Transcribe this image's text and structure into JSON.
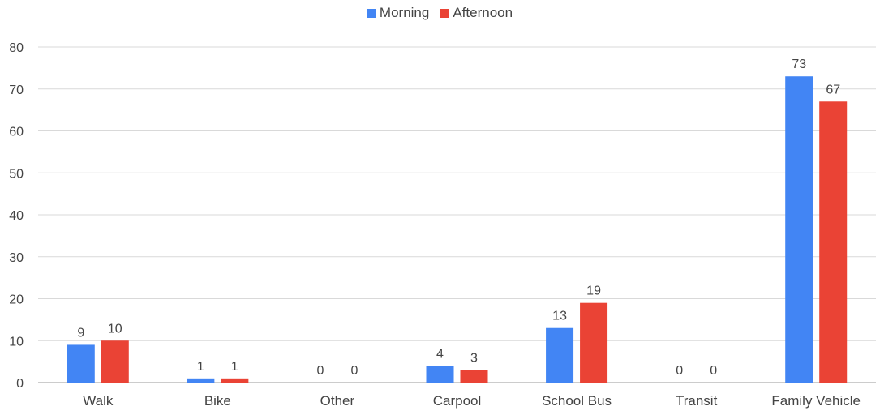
{
  "chart_data": {
    "type": "bar",
    "categories": [
      "Walk",
      "Bike",
      "Other",
      "Carpool",
      "School Bus",
      "Transit",
      "Family Vehicle"
    ],
    "series": [
      {
        "name": "Morning",
        "color": "#4285F4",
        "values": [
          9,
          1,
          0,
          4,
          13,
          0,
          73
        ],
        "labels": [
          "9",
          "1",
          "0",
          "4",
          "13",
          "0",
          "73"
        ]
      },
      {
        "name": "Afternoon",
        "color": "#EA4335",
        "values": [
          10,
          1,
          0,
          3,
          19,
          0,
          67
        ],
        "labels": [
          "10",
          "1",
          "0",
          "3",
          "19",
          "0",
          "67"
        ]
      }
    ],
    "ylim": [
      0,
      80
    ],
    "yticks": [
      "0",
      "10",
      "20",
      "30",
      "40",
      "50",
      "60",
      "70",
      "80"
    ],
    "grid": true,
    "legend_position": "top-center"
  }
}
